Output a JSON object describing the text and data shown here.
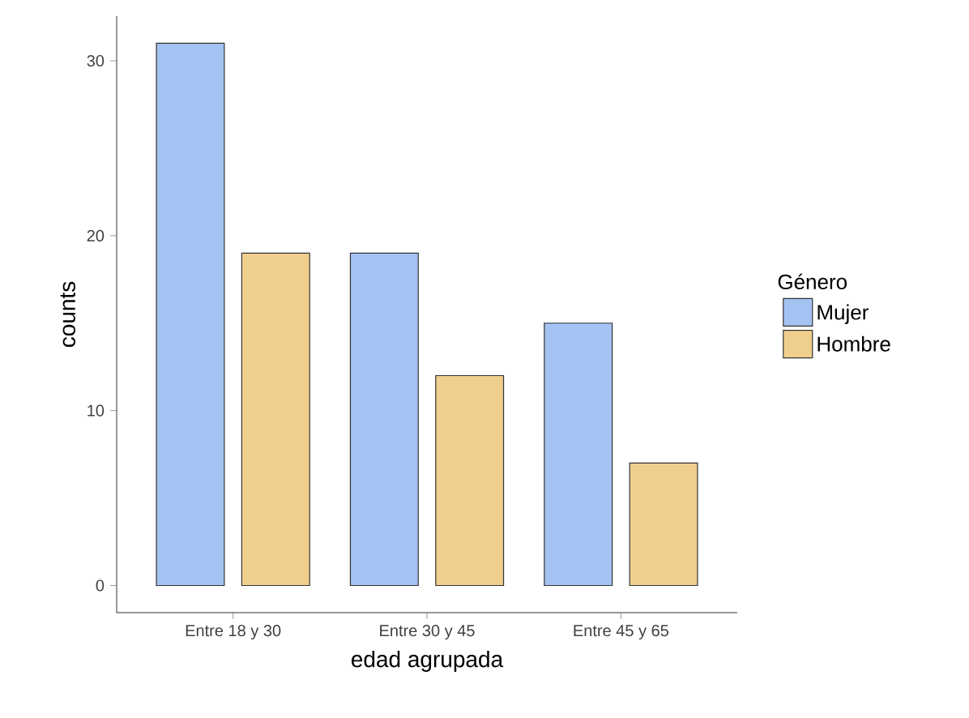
{
  "chart_data": {
    "type": "bar",
    "xlabel": "edad agrupada",
    "ylabel": "counts",
    "legend_title": "Género",
    "categories": [
      "Entre 18 y 30",
      "Entre 30 y 45",
      "Entre 45 y 65"
    ],
    "series": [
      {
        "name": "Mujer",
        "color": "#a4c3f2",
        "values": [
          31,
          19,
          15
        ]
      },
      {
        "name": "Hombre",
        "color": "#f0ce8e",
        "values": [
          19,
          12,
          7
        ]
      }
    ],
    "ylim": [
      -1.55,
      32.55
    ],
    "yticks": [
      0,
      10,
      20,
      30
    ],
    "legend": "right",
    "grid": false
  }
}
